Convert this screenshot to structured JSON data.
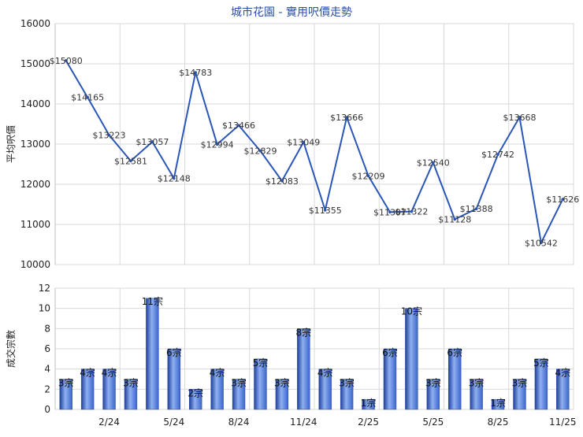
{
  "chart_data": [
    {
      "type": "line",
      "title": "城市花園 - 實用呎價走勢",
      "ylabel": "平均呎價",
      "ylim": [
        10000,
        16000
      ],
      "yticks": [
        "10000",
        "11000",
        "12000",
        "13000",
        "14000",
        "15000",
        "16000"
      ],
      "grid": true,
      "color": "#2a56b8",
      "values": [
        15080,
        14165,
        13223,
        12581,
        13057,
        12148,
        14783,
        12994,
        13466,
        12829,
        12083,
        13049,
        11355,
        13666,
        12209,
        11307,
        11322,
        12540,
        11128,
        11388,
        12742,
        13668,
        10542,
        11626
      ],
      "labels": [
        "$15080",
        "$14165",
        "$13223",
        "$12581",
        "$13057",
        "$12148",
        "$14783",
        "$12994",
        "$13466",
        "$12829",
        "$12083",
        "$13049",
        "$11355",
        "$13666",
        "$12209",
        "$11307",
        "$11322",
        "$12540",
        "$11128",
        "$11388",
        "$12742",
        "$13668",
        "$10542",
        "$11626"
      ]
    },
    {
      "type": "bar",
      "ylabel": "成交宗數",
      "ylim": [
        0,
        12
      ],
      "yticks": [
        "0",
        "2",
        "4",
        "6",
        "8",
        "10",
        "12"
      ],
      "grid": true,
      "color": "#3b64cc",
      "values": [
        3,
        4,
        4,
        3,
        11,
        6,
        2,
        4,
        3,
        5,
        3,
        8,
        4,
        3,
        1,
        6,
        10,
        3,
        6,
        3,
        1,
        3,
        5,
        4
      ],
      "labels": [
        "3宗",
        "4宗",
        "4宗",
        "3宗",
        "11宗",
        "6宗",
        "2宗",
        "4宗",
        "3宗",
        "5宗",
        "3宗",
        "8宗",
        "4宗",
        "3宗",
        "1宗",
        "6宗",
        "10宗",
        "3宗",
        "6宗",
        "3宗",
        "1宗",
        "3宗",
        "5宗",
        "4宗"
      ],
      "x_tick_labels": [
        {
          "index": 2,
          "label": "2/24"
        },
        {
          "index": 5,
          "label": "5/24"
        },
        {
          "index": 8,
          "label": "8/24"
        },
        {
          "index": 11,
          "label": "11/24"
        },
        {
          "index": 14,
          "label": "2/25"
        },
        {
          "index": 17,
          "label": "5/25"
        },
        {
          "index": 20,
          "label": "8/25"
        },
        {
          "index": 23,
          "label": "11/25"
        }
      ]
    }
  ]
}
